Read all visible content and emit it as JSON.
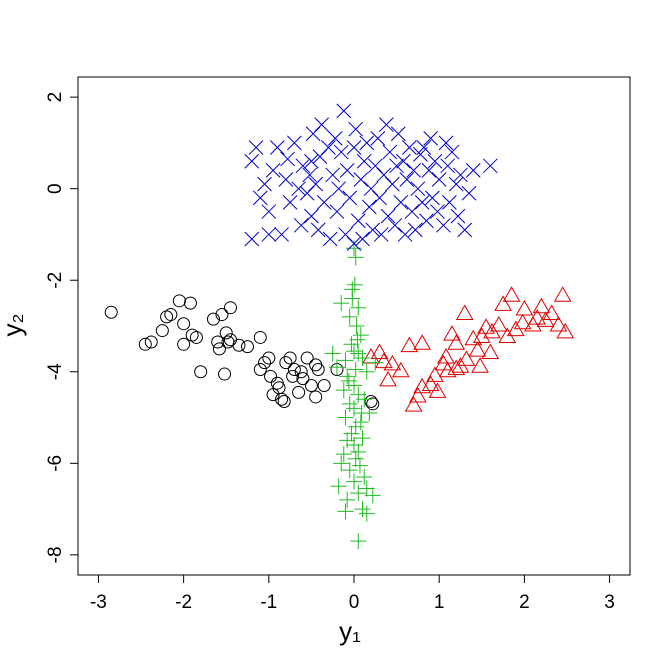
{
  "chart_data": {
    "type": "scatter",
    "x_label": "y₁",
    "y_label": "y₂",
    "xlim": [
      -3.24,
      3.24
    ],
    "ylim": [
      -8.44,
      2.44
    ],
    "xticks": [
      -3,
      -2,
      -1,
      0,
      1,
      2,
      3
    ],
    "yticks": [
      -8,
      -6,
      -4,
      -2,
      0,
      2
    ],
    "series": [
      {
        "marker": "circle",
        "color": "#000000",
        "x": [
          -2.85,
          -2.45,
          -2.38,
          -2.25,
          -2.2,
          -2.15,
          -2.05,
          -2.0,
          -2.0,
          -1.92,
          -1.9,
          -1.85,
          -1.8,
          -1.65,
          -1.6,
          -1.58,
          -1.55,
          -1.52,
          -1.5,
          -1.48,
          -1.45,
          -1.45,
          -1.25,
          -1.1,
          -1.1,
          -1.05,
          -1.0,
          -0.98,
          -0.95,
          -0.9,
          -0.88,
          -0.85,
          -0.82,
          -0.8,
          -0.75,
          -0.72,
          -0.7,
          -0.65,
          -0.6,
          -0.55,
          -0.5,
          -0.45,
          -0.45,
          -0.42,
          -0.35,
          -0.2,
          0.2,
          0.22,
          -0.62,
          -1.35
        ],
        "y": [
          -2.7,
          -3.4,
          -3.35,
          -3.1,
          -2.8,
          -2.75,
          -2.45,
          -2.95,
          -3.4,
          -2.5,
          -3.2,
          -3.25,
          -4.0,
          -2.85,
          -3.35,
          -3.5,
          -2.75,
          -4.05,
          -3.15,
          -3.35,
          -3.3,
          -2.6,
          -3.45,
          -3.25,
          -3.95,
          -3.8,
          -3.7,
          -4.1,
          -4.5,
          -4.25,
          -4.35,
          -4.6,
          -4.65,
          -3.8,
          -3.7,
          -4.1,
          -3.95,
          -4.45,
          -4.15,
          -3.7,
          -4.3,
          -3.85,
          -4.55,
          -3.95,
          -4.3,
          -3.95,
          -4.65,
          -4.7,
          -4.0,
          -3.42
        ]
      },
      {
        "marker": "triangle",
        "color": "#df0000",
        "x": [
          0.2,
          0.3,
          0.35,
          0.45,
          0.4,
          0.65,
          0.7,
          0.75,
          0.8,
          0.8,
          0.9,
          0.95,
          0.98,
          1.05,
          1.08,
          1.1,
          1.15,
          1.2,
          1.25,
          1.3,
          1.32,
          1.4,
          1.45,
          1.48,
          1.5,
          1.55,
          1.6,
          1.62,
          1.7,
          1.75,
          1.8,
          1.85,
          1.9,
          1.98,
          2.0,
          2.1,
          2.15,
          2.2,
          2.25,
          2.32,
          2.4,
          2.45,
          2.48,
          1.2,
          0.55
        ],
        "y": [
          -3.7,
          -3.6,
          -3.8,
          -3.85,
          -4.2,
          -3.45,
          -4.75,
          -4.55,
          -3.4,
          -4.35,
          -4.3,
          -4.1,
          -4.45,
          -3.85,
          -3.7,
          -4.0,
          -3.2,
          -3.95,
          -3.9,
          -2.75,
          -3.75,
          -3.3,
          -3.55,
          -3.9,
          -3.25,
          -3.05,
          -3.6,
          -3.15,
          -3.0,
          -2.55,
          -3.25,
          -2.35,
          -3.1,
          -2.95,
          -2.65,
          -3.0,
          -2.85,
          -2.6,
          -2.9,
          -2.75,
          -3.0,
          -2.35,
          -3.15,
          -3.4,
          -4.0
        ]
      },
      {
        "marker": "plus",
        "color": "#22bb22",
        "x": [
          0.0,
          0.02,
          0.01,
          -0.02,
          -0.15,
          0.05,
          -0.05,
          0.03,
          0.08,
          -0.03,
          0.0,
          0.05,
          0.1,
          -0.1,
          -0.2,
          0.02,
          0.15,
          -0.08,
          0.0,
          -0.12,
          0.05,
          0.12,
          -0.05,
          0.0,
          0.18,
          -0.1,
          0.08,
          0.02,
          -0.03,
          0.1,
          -0.08,
          0.0,
          0.05,
          -0.12,
          0.02,
          -0.15,
          0.07,
          -0.05,
          0.12,
          0.0,
          -0.18,
          0.15,
          0.05,
          0.22,
          -0.08,
          0.1,
          -0.1,
          0.15,
          0.05,
          -0.25,
          0.25,
          -0.02,
          0.04,
          -0.06,
          0.09
        ],
        "y": [
          -1.3,
          -1.5,
          -2.1,
          -2.4,
          -2.5,
          -2.6,
          -2.8,
          -3.0,
          -3.2,
          -3.4,
          -3.55,
          -3.6,
          -3.7,
          -3.75,
          -3.9,
          -3.95,
          -4.0,
          -4.1,
          -4.3,
          -4.4,
          -4.5,
          -4.6,
          -4.7,
          -4.8,
          -4.9,
          -5.0,
          -5.1,
          -5.2,
          -5.35,
          -5.45,
          -5.5,
          -5.6,
          -5.75,
          -5.8,
          -5.9,
          -6.0,
          -6.05,
          -6.15,
          -6.3,
          -6.4,
          -6.5,
          -6.55,
          -6.65,
          -6.7,
          -6.8,
          -7.0,
          -7.05,
          -7.1,
          -7.7,
          -3.6,
          -3.8,
          -2.2,
          -3.3,
          -4.2,
          -4.9
        ]
      },
      {
        "marker": "cross",
        "color": "#0000cc",
        "x": [
          -1.2,
          -1.15,
          -1.1,
          -1.05,
          -1.0,
          -0.95,
          -0.9,
          -0.85,
          -0.8,
          -0.78,
          -0.75,
          -0.7,
          -0.65,
          -0.62,
          -0.6,
          -0.55,
          -0.52,
          -0.5,
          -0.48,
          -0.45,
          -0.42,
          -0.4,
          -0.38,
          -0.35,
          -0.3,
          -0.28,
          -0.25,
          -0.22,
          -0.2,
          -0.18,
          -0.15,
          -0.12,
          -0.1,
          -0.08,
          -0.05,
          0.0,
          0.02,
          0.05,
          0.08,
          0.1,
          0.12,
          0.15,
          0.18,
          0.2,
          0.22,
          0.25,
          0.28,
          0.3,
          0.32,
          0.35,
          0.38,
          0.4,
          0.42,
          0.45,
          0.48,
          0.5,
          0.52,
          0.55,
          0.58,
          0.6,
          0.62,
          0.65,
          0.68,
          0.7,
          0.72,
          0.75,
          0.78,
          0.8,
          0.82,
          0.85,
          0.88,
          0.9,
          0.92,
          0.95,
          0.98,
          1.0,
          1.05,
          1.08,
          1.1,
          1.12,
          1.15,
          1.2,
          1.22,
          1.25,
          1.3,
          1.35,
          1.4,
          1.6,
          -1.2,
          -1.0,
          -0.5,
          0.0
        ],
        "y": [
          0.6,
          0.9,
          -0.2,
          0.1,
          -0.5,
          0.4,
          0.9,
          -1.0,
          0.2,
          0.65,
          -0.3,
          1.0,
          0.0,
          -0.8,
          0.5,
          -0.1,
          0.3,
          -0.6,
          1.2,
          0.1,
          -0.9,
          0.7,
          1.4,
          -0.3,
          0.9,
          -1.1,
          0.3,
          1.1,
          -0.5,
          0.0,
          0.8,
          1.7,
          -1.0,
          0.4,
          -0.2,
          0.9,
          1.3,
          -0.7,
          0.2,
          -1.1,
          0.6,
          1.0,
          -0.4,
          0.0,
          -0.9,
          0.5,
          1.1,
          -0.2,
          -1.0,
          0.3,
          1.4,
          -0.6,
          0.8,
          0.1,
          -0.8,
          0.5,
          1.2,
          -0.3,
          0.6,
          -1.0,
          0.2,
          0.9,
          -0.5,
          0.4,
          -0.9,
          0.0,
          0.75,
          -0.3,
          0.9,
          -0.7,
          0.4,
          1.1,
          -0.2,
          0.6,
          -0.5,
          0.2,
          -0.8,
          1.0,
          0.5,
          -0.3,
          0.8,
          0.1,
          -0.6,
          0.3,
          -0.9,
          -0.1,
          0.4,
          0.5,
          -1.1,
          -1.0,
          0.6,
          -1.2
        ]
      }
    ]
  }
}
